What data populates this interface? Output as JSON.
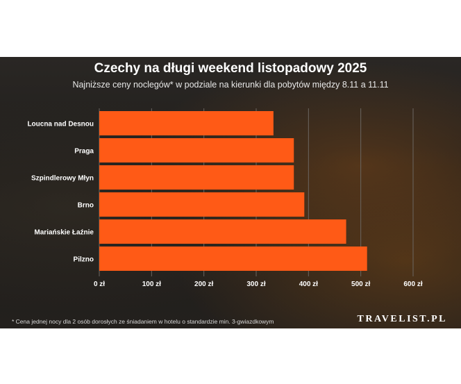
{
  "chart_data": {
    "type": "bar",
    "orientation": "horizontal",
    "title": "Czechy na długi weekend listopadowy 2025",
    "subtitle": "Najniższe ceny noclegów* w podziale na kierunki dla pobytów między 8.11 a 11.11",
    "categories": [
      "Loucna nad Desnou",
      "Praga",
      "Szpindlerowy Młyn",
      "Brno",
      "Mariańskie Łaźnie",
      "Pilzno"
    ],
    "values": [
      333,
      372,
      372,
      392,
      472,
      512
    ],
    "xlim": [
      0,
      600
    ],
    "xticks": [
      0,
      100,
      200,
      300,
      400,
      500,
      600
    ],
    "xtick_labels": [
      "0 zł",
      "100 zł",
      "200 zł",
      "300 zł",
      "400 zł",
      "500 zł",
      "600 zł"
    ],
    "grid": true,
    "bar_color": "#ff5a16"
  },
  "footnote": "* Cena jednej nocy dla 2 osób dorosłych ze śniadaniem w hotelu o standardzie min. 3-gwiazdkowym",
  "brand": "TRAVELIST.PL"
}
